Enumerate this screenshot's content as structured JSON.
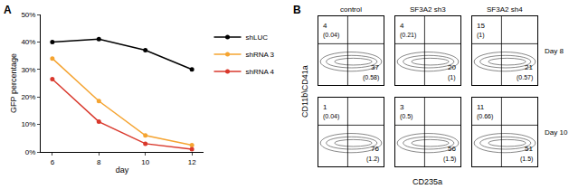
{
  "chart_data": [
    {
      "type": "line",
      "title": "A",
      "xlabel": "day",
      "ylabel": "GFP percentage",
      "x": [
        6,
        8,
        10,
        12
      ],
      "series": [
        {
          "name": "shLUC",
          "color": "#000000",
          "values": [
            40,
            41,
            37,
            30
          ]
        },
        {
          "name": "shRNA 3",
          "color": "#f5a431",
          "values": [
            34,
            18.5,
            6,
            2.5
          ]
        },
        {
          "name": "shRNA 4",
          "color": "#d9382c",
          "values": [
            26.5,
            11,
            3,
            1
          ]
        }
      ],
      "xlim": [
        5.5,
        12.5
      ],
      "xticks": [
        6,
        8,
        10,
        12
      ],
      "ylim": [
        0,
        50
      ],
      "yticks": [
        {
          "value": 0,
          "label": "0%"
        },
        {
          "value": 10,
          "label": "10%"
        },
        {
          "value": 20,
          "label": "20%"
        },
        {
          "value": 30,
          "label": "30%"
        },
        {
          "value": 40,
          "label": "40%"
        },
        {
          "value": 50,
          "label": "50%"
        }
      ],
      "marker": "circle",
      "line_style": "solid",
      "legend": "right",
      "grid": false
    },
    {
      "type": "quadrant_grid",
      "title": "B",
      "xlabel": "CD235a",
      "ylabel": "CD11b\\CD41a",
      "columns": [
        "control",
        "SF3A2 sh3",
        "SF3A2 sh4"
      ],
      "rows": [
        "Day 8",
        "Day 10"
      ],
      "cells": [
        [
          {
            "upper_left": {
              "value": 4,
              "error_label": "(0.04)"
            },
            "lower_right": {
              "value": 37,
              "error_label": "(0.58)"
            }
          },
          {
            "upper_left": {
              "value": 4,
              "error_label": "(0.21)"
            },
            "lower_right": {
              "value": 20,
              "error_label": "(1)"
            }
          },
          {
            "upper_left": {
              "value": 15,
              "error_label": "(1)"
            },
            "lower_right": {
              "value": 21,
              "error_label": "(0.57)"
            }
          }
        ],
        [
          {
            "upper_left": {
              "value": 1,
              "error_label": "(0.04)"
            },
            "lower_right": {
              "value": 76,
              "error_label": "(1.2)"
            }
          },
          {
            "upper_left": {
              "value": 3,
              "error_label": "(0.5)"
            },
            "lower_right": {
              "value": 56,
              "error_label": "(1.5)"
            }
          },
          {
            "upper_left": {
              "value": 11,
              "error_label": "(0.66)"
            },
            "lower_right": {
              "value": 51,
              "error_label": "(1.5)"
            }
          }
        ]
      ]
    }
  ]
}
